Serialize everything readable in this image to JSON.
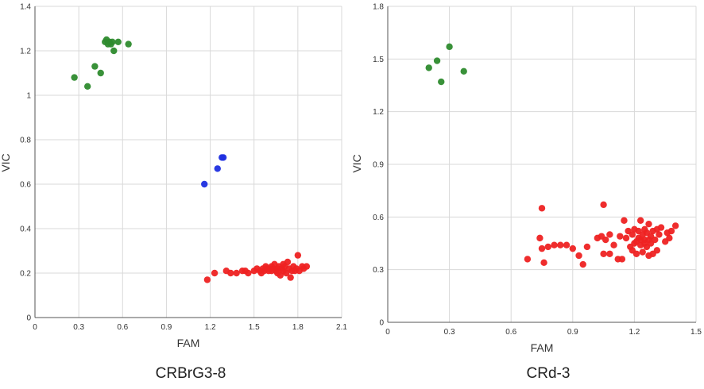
{
  "chart_data": [
    {
      "type": "scatter",
      "caption": "CRBrG3-8",
      "xlabel": "FAM",
      "ylabel": "VIC",
      "xlim": [
        0,
        2.1
      ],
      "ylim": [
        0,
        1.4
      ],
      "xticks": [
        "0",
        "0.3",
        "0.6",
        "0.9",
        "1.2",
        "1.5",
        "1.8",
        "2.1"
      ],
      "yticks": [
        "0",
        "0.2",
        "0.4",
        "0.6",
        "0.8",
        "1",
        "1.2",
        "1.4"
      ],
      "grid": true,
      "series": [
        {
          "color": "#2e8b2e",
          "points": [
            [
              0.27,
              1.08
            ],
            [
              0.36,
              1.04
            ],
            [
              0.41,
              1.13
            ],
            [
              0.45,
              1.1
            ],
            [
              0.48,
              1.24
            ],
            [
              0.49,
              1.25
            ],
            [
              0.5,
              1.23
            ],
            [
              0.51,
              1.24
            ],
            [
              0.52,
              1.23
            ],
            [
              0.53,
              1.24
            ],
            [
              0.54,
              1.2
            ],
            [
              0.57,
              1.24
            ],
            [
              0.64,
              1.23
            ]
          ]
        },
        {
          "color": "#1f2fe0",
          "points": [
            [
              1.16,
              0.6
            ],
            [
              1.25,
              0.67
            ],
            [
              1.28,
              0.72
            ],
            [
              1.29,
              0.72
            ]
          ]
        },
        {
          "color": "#ee2222",
          "points": [
            [
              1.18,
              0.17
            ],
            [
              1.23,
              0.2
            ],
            [
              1.31,
              0.21
            ],
            [
              1.34,
              0.2
            ],
            [
              1.38,
              0.2
            ],
            [
              1.42,
              0.21
            ],
            [
              1.44,
              0.21
            ],
            [
              1.46,
              0.2
            ],
            [
              1.5,
              0.21
            ],
            [
              1.52,
              0.22
            ],
            [
              1.54,
              0.21
            ],
            [
              1.55,
              0.2
            ],
            [
              1.56,
              0.22
            ],
            [
              1.57,
              0.21
            ],
            [
              1.58,
              0.23
            ],
            [
              1.59,
              0.22
            ],
            [
              1.6,
              0.21
            ],
            [
              1.61,
              0.22
            ],
            [
              1.62,
              0.23
            ],
            [
              1.63,
              0.22
            ],
            [
              1.64,
              0.24
            ],
            [
              1.65,
              0.21
            ],
            [
              1.66,
              0.22
            ],
            [
              1.67,
              0.23
            ],
            [
              1.68,
              0.19
            ],
            [
              1.69,
              0.22
            ],
            [
              1.7,
              0.21
            ],
            [
              1.71,
              0.23
            ],
            [
              1.72,
              0.2
            ],
            [
              1.73,
              0.25
            ],
            [
              1.74,
              0.22
            ],
            [
              1.75,
              0.18
            ],
            [
              1.76,
              0.21
            ],
            [
              1.77,
              0.23
            ],
            [
              1.79,
              0.22
            ],
            [
              1.8,
              0.28
            ],
            [
              1.81,
              0.21
            ],
            [
              1.83,
              0.23
            ],
            [
              1.84,
              0.22
            ],
            [
              1.86,
              0.23
            ],
            [
              1.66,
              0.2
            ],
            [
              1.62,
              0.21
            ],
            [
              1.58,
              0.22
            ],
            [
              1.7,
              0.24
            ],
            [
              1.78,
              0.21
            ]
          ]
        }
      ]
    },
    {
      "type": "scatter",
      "caption": "CRd-3",
      "xlabel": "FAM",
      "ylabel": "VIC",
      "xlim": [
        0,
        1.5
      ],
      "ylim": [
        0,
        1.8
      ],
      "xticks": [
        "0",
        "0.3",
        "0.6",
        "0.9",
        "1.2",
        "1.5"
      ],
      "yticks": [
        "0",
        "0.3",
        "0.6",
        "0.9",
        "1.2",
        "1.5",
        "1.8"
      ],
      "grid": true,
      "series": [
        {
          "color": "#2e8b2e",
          "points": [
            [
              0.2,
              1.45
            ],
            [
              0.24,
              1.49
            ],
            [
              0.26,
              1.37
            ],
            [
              0.3,
              1.57
            ],
            [
              0.37,
              1.43
            ]
          ]
        },
        {
          "color": "#ee2222",
          "points": [
            [
              0.68,
              0.36
            ],
            [
              0.74,
              0.48
            ],
            [
              0.75,
              0.42
            ],
            [
              0.75,
              0.65
            ],
            [
              0.76,
              0.34
            ],
            [
              0.78,
              0.43
            ],
            [
              0.81,
              0.44
            ],
            [
              0.84,
              0.44
            ],
            [
              0.87,
              0.44
            ],
            [
              0.9,
              0.42
            ],
            [
              0.93,
              0.38
            ],
            [
              0.95,
              0.33
            ],
            [
              0.97,
              0.43
            ],
            [
              1.02,
              0.48
            ],
            [
              1.04,
              0.49
            ],
            [
              1.05,
              0.67
            ],
            [
              1.05,
              0.39
            ],
            [
              1.06,
              0.47
            ],
            [
              1.08,
              0.5
            ],
            [
              1.08,
              0.39
            ],
            [
              1.1,
              0.44
            ],
            [
              1.12,
              0.36
            ],
            [
              1.13,
              0.49
            ],
            [
              1.14,
              0.36
            ],
            [
              1.15,
              0.58
            ],
            [
              1.16,
              0.48
            ],
            [
              1.17,
              0.52
            ],
            [
              1.18,
              0.43
            ],
            [
              1.19,
              0.5
            ],
            [
              1.2,
              0.45
            ],
            [
              1.2,
              0.53
            ],
            [
              1.21,
              0.39
            ],
            [
              1.22,
              0.48
            ],
            [
              1.22,
              0.52
            ],
            [
              1.23,
              0.58
            ],
            [
              1.23,
              0.44
            ],
            [
              1.24,
              0.5
            ],
            [
              1.24,
              0.4
            ],
            [
              1.25,
              0.53
            ],
            [
              1.25,
              0.47
            ],
            [
              1.26,
              0.51
            ],
            [
              1.26,
              0.43
            ],
            [
              1.27,
              0.56
            ],
            [
              1.27,
              0.38
            ],
            [
              1.28,
              0.49
            ],
            [
              1.28,
              0.45
            ],
            [
              1.29,
              0.52
            ],
            [
              1.3,
              0.47
            ],
            [
              1.31,
              0.53
            ],
            [
              1.31,
              0.41
            ],
            [
              1.32,
              0.5
            ],
            [
              1.33,
              0.54
            ],
            [
              1.35,
              0.46
            ],
            [
              1.36,
              0.51
            ],
            [
              1.37,
              0.48
            ],
            [
              1.38,
              0.52
            ],
            [
              1.4,
              0.55
            ],
            [
              1.21,
              0.46
            ],
            [
              1.23,
              0.47
            ],
            [
              1.25,
              0.45
            ],
            [
              1.19,
              0.41
            ],
            [
              1.29,
              0.39
            ],
            [
              1.27,
              0.47
            ]
          ]
        }
      ]
    }
  ]
}
